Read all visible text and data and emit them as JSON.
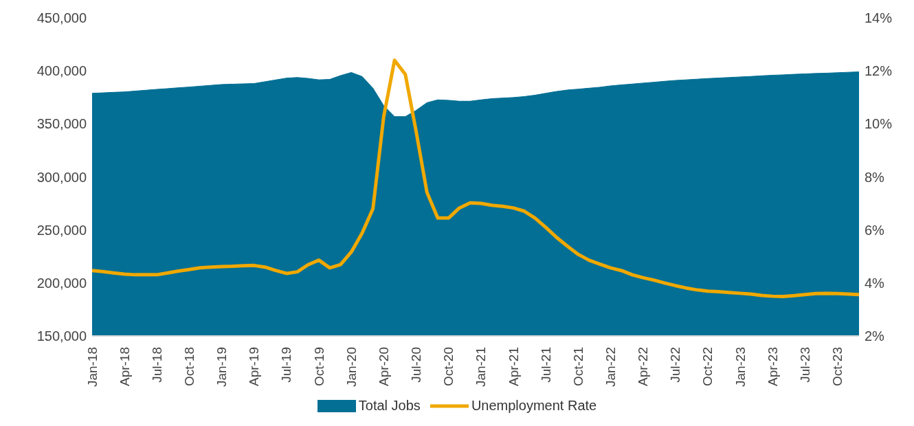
{
  "chart_data": {
    "type": "area",
    "categories": [
      "Jan-18",
      null,
      null,
      "Apr-18",
      null,
      null,
      "Jul-18",
      null,
      null,
      "Oct-18",
      null,
      null,
      "Jan-19",
      null,
      null,
      "Apr-19",
      null,
      null,
      "Jul-19",
      null,
      null,
      "Oct-19",
      null,
      null,
      "Jan-20",
      null,
      null,
      "Apr-20",
      null,
      null,
      "Jul-20",
      null,
      null,
      "Oct-20",
      null,
      null,
      "Jan-21",
      null,
      null,
      "Apr-21",
      null,
      null,
      "Jul-21",
      null,
      null,
      "Oct-21",
      null,
      null,
      "Jan-22",
      null,
      null,
      "Apr-22",
      null,
      null,
      "Jul-22",
      null,
      null,
      "Oct-22",
      null,
      null,
      "Jan-23",
      null,
      null,
      "Apr-23",
      null,
      null,
      "Jul-23",
      null,
      null,
      "Oct-23",
      null,
      null
    ],
    "series": [
      {
        "name": "Total Jobs",
        "color": "#036f94",
        "values": [
          378900,
          379300,
          379800,
          380200,
          381000,
          381800,
          382600,
          383300,
          384100,
          384800,
          385600,
          386400,
          387200,
          387500,
          387800,
          388100,
          389800,
          391500,
          393200,
          393800,
          392900,
          391600,
          392000,
          395600,
          398500,
          394700,
          383700,
          367200,
          356900,
          356900,
          362800,
          370000,
          372700,
          372300,
          371400,
          371400,
          372700,
          373800,
          374400,
          374900,
          375800,
          377100,
          378900,
          380600,
          382000,
          382800,
          383700,
          384600,
          385900,
          386800,
          387600,
          388500,
          389300,
          390200,
          391000,
          391600,
          392200,
          392800,
          393300,
          393800,
          394300,
          394800,
          395400,
          395900,
          396300,
          396800,
          397200,
          397600,
          397900,
          398300,
          398700,
          399100
        ]
      },
      {
        "name": "Unemployment Rate",
        "type": "line",
        "axis": "y2",
        "color": "#f0a800",
        "values": [
          4.47,
          4.43,
          4.38,
          4.33,
          4.31,
          4.31,
          4.31,
          4.38,
          4.45,
          4.51,
          4.57,
          4.6,
          4.62,
          4.63,
          4.65,
          4.66,
          4.6,
          4.47,
          4.36,
          4.42,
          4.69,
          4.86,
          4.57,
          4.69,
          5.17,
          5.88,
          6.8,
          10.28,
          12.4,
          11.87,
          9.71,
          7.42,
          6.45,
          6.45,
          6.83,
          7.02,
          7.0,
          6.93,
          6.89,
          6.83,
          6.71,
          6.45,
          6.1,
          5.72,
          5.39,
          5.08,
          4.86,
          4.71,
          4.57,
          4.47,
          4.31,
          4.2,
          4.11,
          4.0,
          3.9,
          3.81,
          3.74,
          3.69,
          3.67,
          3.64,
          3.61,
          3.58,
          3.53,
          3.5,
          3.49,
          3.52,
          3.56,
          3.6,
          3.61,
          3.6,
          3.58,
          3.56
        ]
      }
    ],
    "ylim": [
      150000,
      450000
    ],
    "yticks": [
      {
        "value": 150000,
        "label": "150,000"
      },
      {
        "value": 200000,
        "label": "200,000"
      },
      {
        "value": 250000,
        "label": "250,000"
      },
      {
        "value": 300000,
        "label": "300,000"
      },
      {
        "value": 350000,
        "label": "350,000"
      },
      {
        "value": 400000,
        "label": "400,000"
      },
      {
        "value": 450000,
        "label": "450,000"
      }
    ],
    "y2lim": [
      2,
      14
    ],
    "y2ticks": [
      {
        "value": 2,
        "label": "2%"
      },
      {
        "value": 4,
        "label": "4%"
      },
      {
        "value": 6,
        "label": "6%"
      },
      {
        "value": 8,
        "label": "8%"
      },
      {
        "value": 10,
        "label": "10%"
      },
      {
        "value": 12,
        "label": "12%"
      },
      {
        "value": 14,
        "label": "14%"
      }
    ],
    "grid": false,
    "legend": "bottom",
    "marker": "none",
    "line_style": "solid"
  }
}
